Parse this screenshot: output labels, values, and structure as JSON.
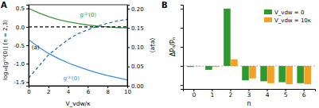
{
  "chart_data": [
    {
      "type": "line",
      "title": "A",
      "x_label": "V_vdw/κ",
      "y_label": "log₁₀[g⁽ⁿ⁾(0)] (n = 2,3)",
      "y2_label": "⟨a†a⟩",
      "x": [
        0,
        1,
        2,
        3,
        4,
        5,
        6,
        7,
        8,
        9,
        10
      ],
      "series": [
        {
          "name": "g⁽²⁾(0)",
          "color": "#3c9a3c",
          "line_style": "solid",
          "values": [
            0.5,
            0.38,
            0.28,
            0.2,
            0.14,
            0.09,
            0.05,
            0.02,
            0.0,
            -0.02,
            -0.03
          ]
        },
        {
          "name": "g⁽³⁾(0)",
          "color": "#3a8ed8",
          "line_style": "solid",
          "values": [
            -0.35,
            -0.55,
            -0.72,
            -0.86,
            -0.98,
            -1.08,
            -1.17,
            -1.25,
            -1.32,
            -1.38,
            -1.44
          ]
        },
        {
          "color": "#2f6fc4",
          "line_style": "dashed",
          "axis": "y2",
          "values": [
            0.02,
            0.05,
            0.08,
            0.1,
            0.12,
            0.135,
            0.145,
            0.155,
            0.162,
            0.168,
            0.172
          ]
        },
        {
          "color": "#000000",
          "line_style": "dashed",
          "values": [
            0,
            0,
            0,
            0,
            0,
            0,
            0,
            0,
            0,
            0,
            0
          ]
        }
      ],
      "annotations": [
        "(a)"
      ],
      "xlim": [
        0,
        10
      ],
      "xticks": [
        0,
        2,
        4,
        6,
        8,
        10
      ],
      "ylim": [
        -1.6,
        0.6
      ],
      "yticks": [
        {
          "value": -1.5,
          "label": "-1.5"
        },
        {
          "value": -1,
          "label": "-1.0"
        },
        -0.5,
        {
          "value": 0,
          "label": "0.0"
        },
        0.5
      ],
      "y2lim": [
        0,
        0.21
      ],
      "y2ticks": [
        {
          "value": 0,
          "label": "0.00"
        },
        0.05,
        {
          "value": 0.1,
          "label": "0.10"
        },
        0.15,
        {
          "value": 0.2,
          "label": "0.20"
        }
      ]
    },
    {
      "type": "bar",
      "title": "B",
      "x_label": "n",
      "y_label": "ΔPₙ/Pₙ",
      "categories": [
        "0",
        "1",
        "2",
        "3",
        "4",
        "5",
        "6"
      ],
      "series": [
        {
          "name": "V_vdw = 0",
          "color": "#2e9a2e",
          "values": [
            -0.05,
            -0.2,
            3.0,
            -0.75,
            -0.8,
            -0.85,
            -0.9
          ]
        },
        {
          "name": "V_vdw = 10κ",
          "color": "#f5a020",
          "values": [
            -0.02,
            -0.05,
            0.35,
            -0.65,
            -0.9,
            -0.95,
            -0.95
          ]
        }
      ],
      "ylim": [
        -1.2,
        3.2
      ],
      "yticks": [
        -1,
        0,
        1,
        2,
        3
      ],
      "tick_labels": "x",
      "legend": "upper right"
    }
  ]
}
